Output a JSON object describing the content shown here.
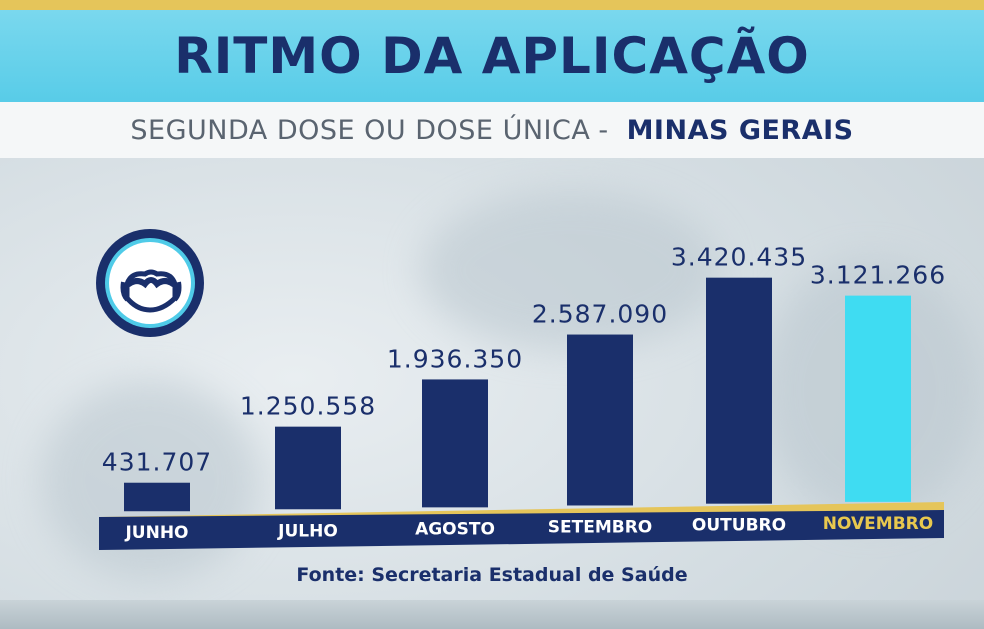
{
  "title": "RITMO DA APLICAÇÃO",
  "subtitle": {
    "main": "SEGUNDA DOSE OU DOSE ÚNICA",
    "separator": "-",
    "region": "MINAS GERAIS"
  },
  "source": "Fonte: Secretaria Estadual de Saúde",
  "icon": "face-mask-icon",
  "colors": {
    "bar": "#1a2f6b",
    "bar_highlight": "#3fdcf2",
    "title": "#1a2f6b",
    "accent_band": "#58cce8",
    "axis_band": "#1a2f6b",
    "axis_gold": "#e5c55a",
    "label_highlight": "#e8c84e"
  },
  "chart_data": {
    "type": "bar",
    "categories": [
      "JUNHO",
      "JULHO",
      "AGOSTO",
      "SETEMBRO",
      "OUTUBRO",
      "NOVEMBRO"
    ],
    "values": [
      431707,
      1250558,
      1936350,
      2587090,
      3420435,
      3121266
    ],
    "value_labels": [
      "431.707",
      "1.250.558",
      "1.936.350",
      "2.587.090",
      "3.420.435",
      "3.121.266"
    ],
    "highlight_index": 5,
    "title": "RITMO DA APLICAÇÃO",
    "xlabel": "",
    "ylabel": "",
    "ylim": [
      0,
      3420435
    ],
    "grid": false
  }
}
